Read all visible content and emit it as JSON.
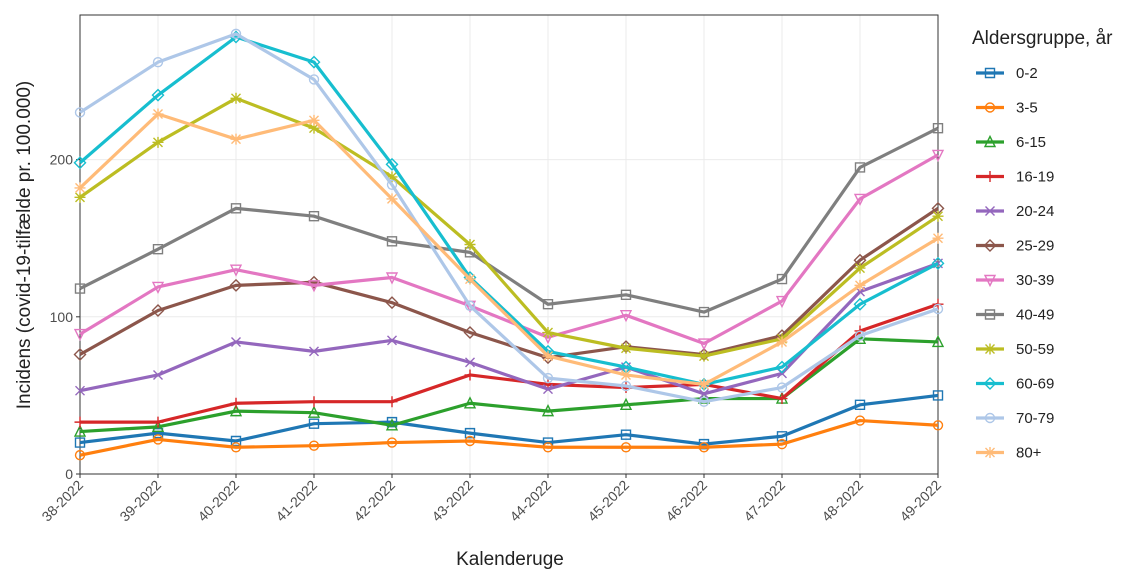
{
  "chart_data": {
    "type": "line",
    "x_label": "Kalenderuge",
    "y_label": "Incidens (covid-19-tilfælde pr. 100.000)",
    "legend_title": "Aldersgruppe, år",
    "legend_position": "right",
    "grid": true,
    "categories": [
      "38-2022",
      "39-2022",
      "40-2022",
      "41-2022",
      "42-2022",
      "43-2022",
      "44-2022",
      "45-2022",
      "46-2022",
      "47-2022",
      "48-2022",
      "49-2022"
    ],
    "ylim": [
      0,
      292
    ],
    "yticks": [
      0,
      100,
      200
    ],
    "series": [
      {
        "name": "0-2",
        "color": "#1f77b4",
        "marker": "square",
        "values": [
          20,
          26,
          21,
          32,
          33,
          26,
          20,
          25,
          19,
          24,
          44,
          50
        ]
      },
      {
        "name": "3-5",
        "color": "#ff7f0e",
        "marker": "circle",
        "values": [
          12,
          22,
          17,
          18,
          20,
          21,
          17,
          17,
          17,
          19,
          34,
          31
        ]
      },
      {
        "name": "6-15",
        "color": "#2ca02c",
        "marker": "triangle",
        "values": [
          27,
          30,
          40,
          39,
          31,
          45,
          40,
          44,
          48,
          48,
          86,
          84
        ]
      },
      {
        "name": "16-19",
        "color": "#d62728",
        "marker": "plus",
        "values": [
          33,
          33,
          45,
          46,
          46,
          63,
          57,
          55,
          57,
          48,
          91,
          108
        ]
      },
      {
        "name": "20-24",
        "color": "#9467bd",
        "marker": "cross",
        "values": [
          53,
          63,
          84,
          78,
          85,
          71,
          54,
          68,
          51,
          64,
          116,
          134
        ]
      },
      {
        "name": "25-29",
        "color": "#8c564b",
        "marker": "diamond",
        "values": [
          76,
          104,
          120,
          122,
          109,
          90,
          74,
          81,
          76,
          88,
          136,
          169
        ]
      },
      {
        "name": "30-39",
        "color": "#e377c2",
        "marker": "triangle-down",
        "values": [
          89,
          119,
          130,
          120,
          125,
          107,
          87,
          101,
          83,
          110,
          175,
          203
        ]
      },
      {
        "name": "40-49",
        "color": "#7f7f7f",
        "marker": "square",
        "values": [
          118,
          143,
          169,
          164,
          148,
          141,
          108,
          114,
          103,
          124,
          195,
          220
        ]
      },
      {
        "name": "50-59",
        "color": "#bcbd22",
        "marker": "star",
        "values": [
          176,
          211,
          239,
          220,
          189,
          146,
          90,
          80,
          75,
          86,
          131,
          164
        ]
      },
      {
        "name": "60-69",
        "color": "#17becf",
        "marker": "diamond",
        "values": [
          198,
          241,
          278,
          262,
          197,
          125,
          78,
          68,
          57,
          68,
          108,
          134
        ]
      },
      {
        "name": "70-79",
        "color": "#aec7e8",
        "marker": "circle",
        "values": [
          230,
          262,
          280,
          251,
          184,
          107,
          61,
          56,
          46,
          55,
          88,
          105
        ]
      },
      {
        "name": "80+",
        "color": "#ffbb78",
        "marker": "star",
        "values": [
          182,
          229,
          213,
          225,
          175,
          124,
          75,
          63,
          57,
          84,
          120,
          150
        ]
      }
    ]
  }
}
